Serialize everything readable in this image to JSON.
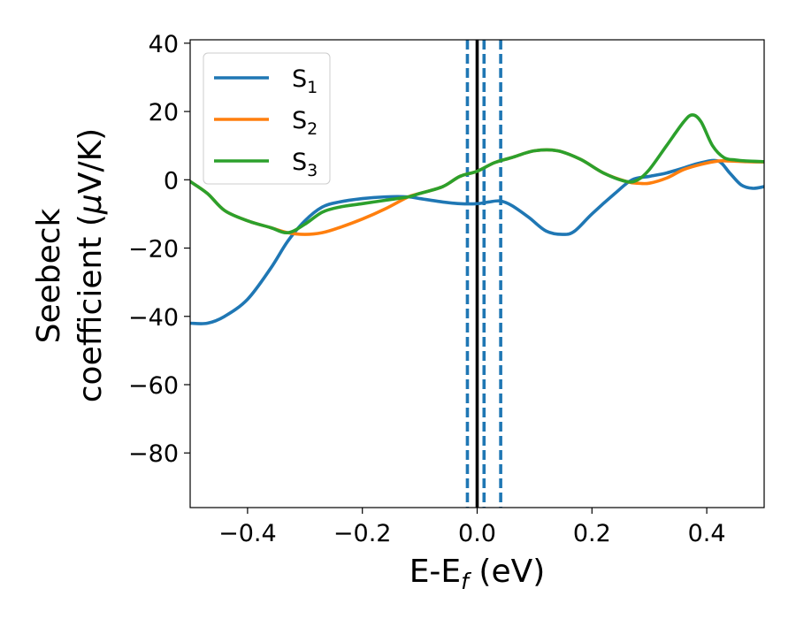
{
  "chart_data": {
    "type": "line",
    "xlabel": "E-E",
    "xlabel_sub": "f",
    "xlabel_unit": " (eV)",
    "ylabel_line1": "Seebeck",
    "ylabel_line2": "coefficient  (",
    "ylabel_mu": "μ",
    "ylabel_unit_rest": "V/K)",
    "xlim": [
      -0.5,
      0.5
    ],
    "ylim": [
      -96,
      41
    ],
    "xticks": [
      -0.4,
      -0.2,
      0.0,
      0.2,
      0.4
    ],
    "xtick_labels": [
      "−0.4",
      "−0.2",
      "0.0",
      "0.2",
      "0.4"
    ],
    "yticks": [
      40,
      20,
      0,
      -20,
      -40,
      -60,
      -80
    ],
    "ytick_labels": [
      "40",
      "20",
      "0",
      "−20",
      "−40",
      "−60",
      "−80"
    ],
    "grid": false,
    "legend_position": "top-left",
    "legend": [
      {
        "base": "S",
        "sub": "1"
      },
      {
        "base": "S",
        "sub": "2"
      },
      {
        "base": "S",
        "sub": "3"
      }
    ],
    "vlines": [
      {
        "x": 0.0,
        "color": "#000000",
        "style": "solid"
      },
      {
        "x": -0.017,
        "color": "#1f77b4",
        "style": "dashed"
      },
      {
        "x": 0.012,
        "color": "#1f77b4",
        "style": "dashed"
      },
      {
        "x": 0.041,
        "color": "#1f77b4",
        "style": "dashed"
      }
    ],
    "series": [
      {
        "name": "S1",
        "color": "#1f77b4",
        "x": [
          -0.5,
          -0.47,
          -0.44,
          -0.4,
          -0.36,
          -0.33,
          -0.3,
          -0.27,
          -0.24,
          -0.2,
          -0.16,
          -0.12,
          -0.1,
          -0.06,
          -0.03,
          0.0,
          0.02,
          0.04,
          0.06,
          0.09,
          0.12,
          0.15,
          0.17,
          0.2,
          0.24,
          0.27,
          0.3,
          0.33,
          0.36,
          0.39,
          0.42,
          0.44,
          0.46,
          0.48,
          0.5
        ],
        "y": [
          -42,
          -42,
          -40,
          -35,
          -26,
          -18,
          -12,
          -8,
          -6.5,
          -5.5,
          -5,
          -5,
          -5.5,
          -6.5,
          -7,
          -7,
          -6.5,
          -6.2,
          -7.5,
          -11,
          -15,
          -16,
          -15,
          -10,
          -4,
          0,
          1,
          2,
          3.5,
          5,
          5.5,
          2,
          -1.5,
          -2.5,
          -2
        ]
      },
      {
        "name": "S2",
        "color": "#ff7f0e",
        "x": [
          -0.5,
          -0.47,
          -0.44,
          -0.4,
          -0.36,
          -0.33,
          -0.3,
          -0.27,
          -0.24,
          -0.2,
          -0.16,
          -0.12,
          -0.1,
          -0.06,
          -0.03,
          0.0,
          0.03,
          0.06,
          0.1,
          0.14,
          0.18,
          0.22,
          0.26,
          0.28,
          0.3,
          0.33,
          0.36,
          0.39,
          0.42,
          0.44,
          0.47,
          0.5
        ],
        "y": [
          -0.5,
          -4,
          -9,
          -12,
          -14,
          -15.5,
          -16,
          -15.5,
          -14,
          -11.5,
          -8.5,
          -5,
          -4,
          -2,
          1,
          2.5,
          5,
          6.5,
          8.5,
          8.5,
          6,
          2,
          -0.5,
          -1,
          -1,
          0.5,
          3,
          4.5,
          5.5,
          5.5,
          5.3,
          5.2
        ]
      },
      {
        "name": "S3",
        "color": "#2ca02c",
        "x": [
          -0.5,
          -0.47,
          -0.44,
          -0.4,
          -0.36,
          -0.33,
          -0.3,
          -0.27,
          -0.24,
          -0.2,
          -0.16,
          -0.12,
          -0.1,
          -0.06,
          -0.03,
          0.0,
          0.03,
          0.06,
          0.1,
          0.14,
          0.18,
          0.22,
          0.26,
          0.28,
          0.3,
          0.33,
          0.36,
          0.375,
          0.39,
          0.41,
          0.43,
          0.45,
          0.47,
          0.5
        ],
        "y": [
          -0.5,
          -4,
          -9,
          -12,
          -14,
          -15.5,
          -13,
          -9.5,
          -8,
          -7,
          -6,
          -5,
          -4,
          -2,
          1,
          2.5,
          5,
          6.5,
          8.5,
          8.5,
          6,
          2,
          -0.5,
          0,
          3,
          10,
          17,
          19,
          17,
          10,
          6.5,
          5.8,
          5.5,
          5.3
        ]
      }
    ]
  }
}
